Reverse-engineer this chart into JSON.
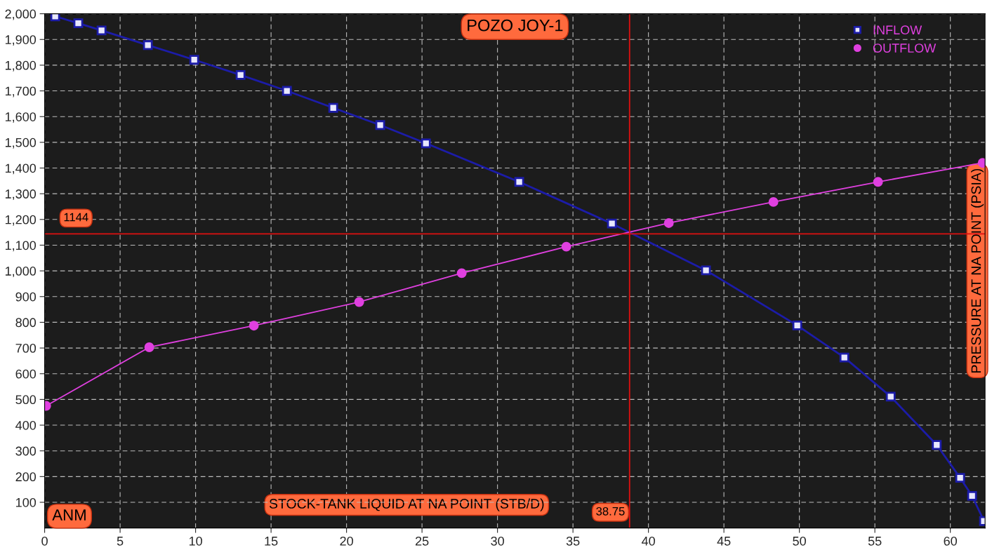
{
  "chart_data": {
    "type": "line",
    "title": "POZO JOY-1",
    "xlabel": "STOCK-TANK LIQUID AT NA POINT (STB/D)",
    "ylabel": "PRESSURE AT NA POINT (PSIA)",
    "annotations": [
      "ANM"
    ],
    "series": [
      {
        "name": "INFLOW",
        "color": "#1c1ca8",
        "marker": "square",
        "x": [
          0.7,
          2.23,
          3.77,
          6.84,
          9.91,
          12.98,
          16.05,
          19.12,
          22.23,
          25.26,
          31.44,
          37.58,
          43.81,
          49.86,
          52.98,
          56.05,
          59.1,
          60.65,
          61.44,
          62.23
        ],
        "values": [
          1990,
          1963,
          1935,
          1878,
          1821,
          1762,
          1700,
          1634,
          1567,
          1496,
          1346,
          1184,
          1002,
          788,
          663,
          511,
          323,
          195,
          125,
          27
        ]
      },
      {
        "name": "OUTFLOW",
        "color": "#e040e0",
        "marker": "circle",
        "x": [
          0.1,
          6.93,
          13.86,
          20.84,
          27.63,
          34.56,
          41.35,
          48.28,
          55.21,
          62.14
        ],
        "values": [
          475,
          703,
          787,
          879,
          991,
          1094,
          1186,
          1268,
          1346,
          1420
        ]
      }
    ],
    "ref_lines": [
      {
        "axis": "y",
        "value": 1144,
        "label": "1144",
        "color": "#e01010"
      },
      {
        "axis": "x",
        "value": 38.75,
        "label": "38.75",
        "color": "#e01010"
      }
    ],
    "xlim": [
      0,
      62.3
    ],
    "ylim": [
      0,
      2000
    ],
    "xticks": [
      0,
      5,
      10,
      15,
      20,
      25,
      30,
      35,
      40,
      45,
      50,
      55,
      60
    ],
    "yticks": [
      100,
      200,
      300,
      400,
      500,
      600,
      700,
      800,
      900,
      {
        "value": 1000,
        "label": "1,000"
      },
      {
        "value": 1100,
        "label": "1,100"
      },
      {
        "value": 1200,
        "label": "1,200"
      },
      {
        "value": 1300,
        "label": "1,300"
      },
      {
        "value": 1400,
        "label": "1,400"
      },
      {
        "value": 1500,
        "label": "1,500"
      },
      {
        "value": 1600,
        "label": "1,600"
      },
      {
        "value": 1700,
        "label": "1,700"
      },
      {
        "value": 1800,
        "label": "1,800"
      },
      {
        "value": 1900,
        "label": "1,900"
      },
      {
        "value": 2000,
        "label": "2,000"
      }
    ],
    "grid": true,
    "legend": "top right",
    "line_style": "solid"
  }
}
